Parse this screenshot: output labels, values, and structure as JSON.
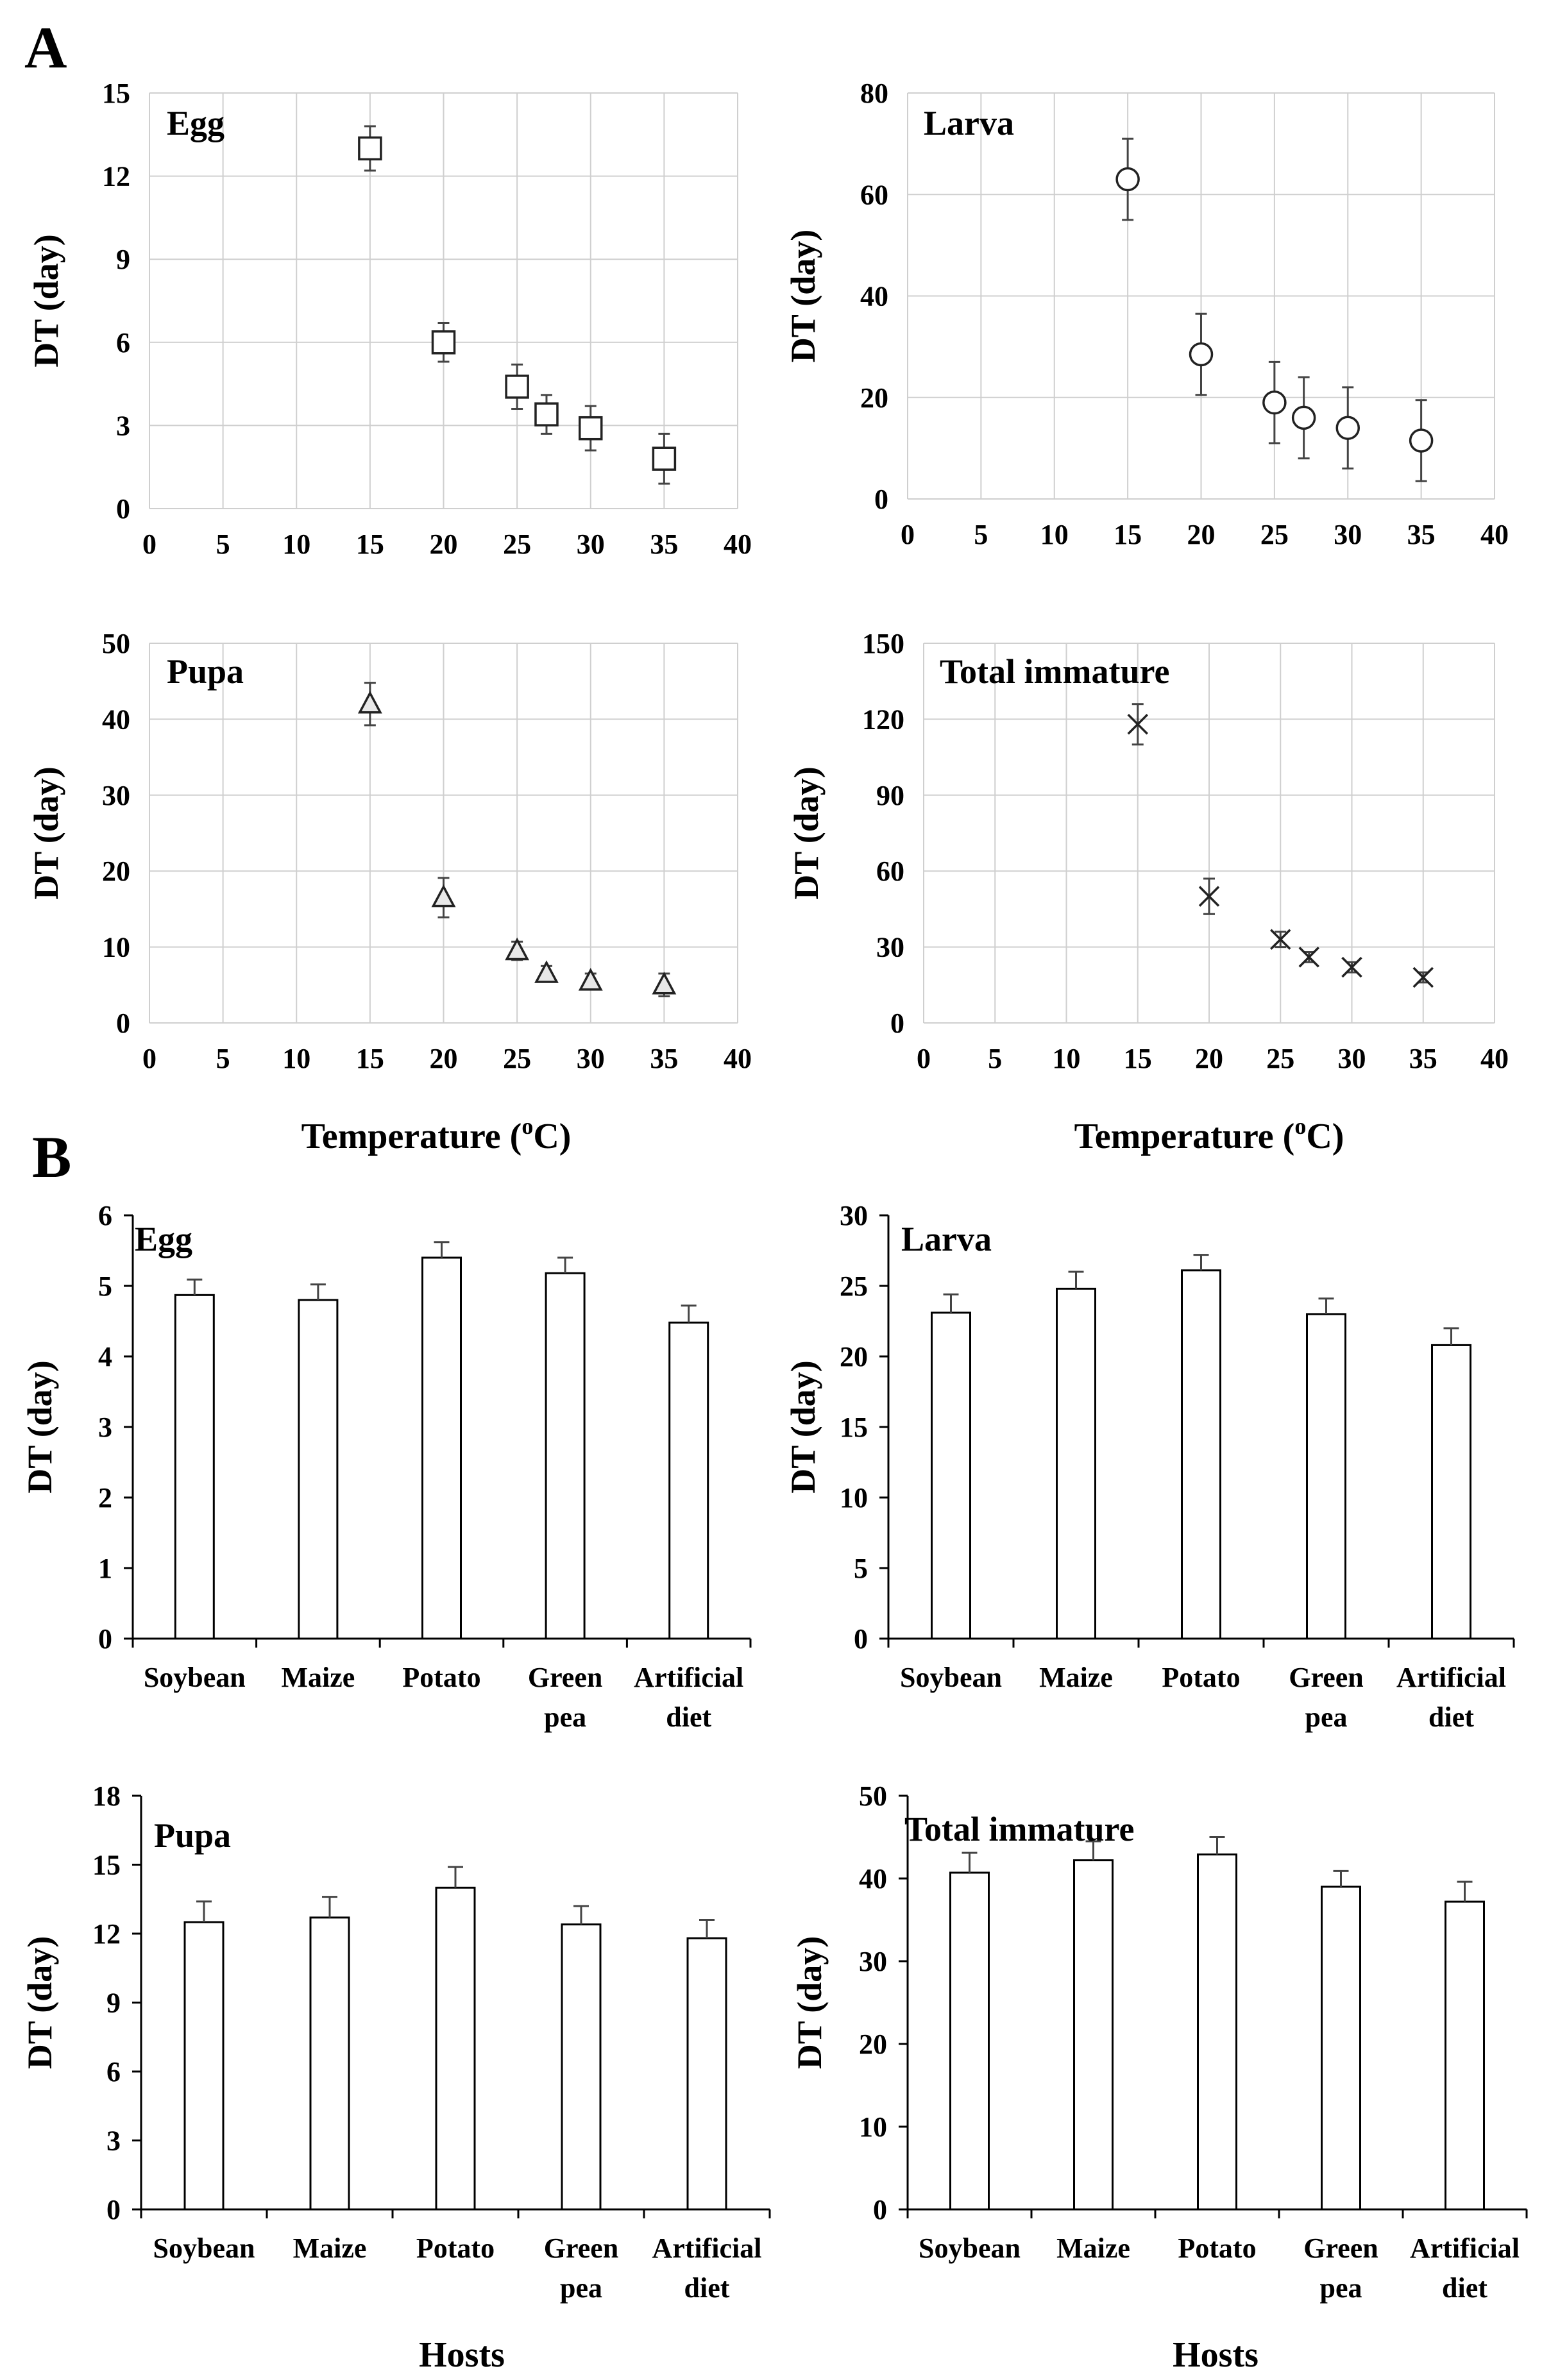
{
  "figure": {
    "section_a_label": "A",
    "section_b_label": "B"
  },
  "chart_data": [
    {
      "type": "scatter",
      "panel": "A",
      "title": "Egg",
      "xlabel": "Temperature (°C)",
      "ylabel": "DT (day)",
      "xlim": [
        0,
        40
      ],
      "xticks": [
        0,
        5,
        10,
        15,
        20,
        25,
        30,
        35,
        40
      ],
      "ylim": [
        0,
        15
      ],
      "yticks": [
        0,
        3,
        6,
        9,
        12,
        15
      ],
      "marker": "square",
      "x": [
        15,
        20,
        25,
        27,
        30,
        35
      ],
      "y": [
        13.0,
        6.0,
        4.4,
        3.4,
        2.9,
        1.8
      ],
      "error": [
        0.8,
        0.7,
        0.8,
        0.7,
        0.8,
        0.9
      ]
    },
    {
      "type": "scatter",
      "panel": "A",
      "title": "Larva",
      "xlabel": "Temperature (°C)",
      "ylabel": "DT (day)",
      "xlim": [
        0,
        40
      ],
      "xticks": [
        0,
        5,
        10,
        15,
        20,
        25,
        30,
        35,
        40
      ],
      "ylim": [
        0,
        80
      ],
      "yticks": [
        0,
        20,
        40,
        60,
        80
      ],
      "marker": "circle",
      "x": [
        15,
        20,
        25,
        27,
        30,
        35
      ],
      "y": [
        63,
        28.5,
        19,
        16,
        14,
        11.5
      ],
      "error": [
        8,
        8,
        8,
        8,
        8,
        8
      ]
    },
    {
      "type": "scatter",
      "panel": "A",
      "title": "Pupa",
      "xlabel": "Temperature (°C)",
      "ylabel": "DT (day)",
      "xlim": [
        0,
        40
      ],
      "xticks": [
        0,
        5,
        10,
        15,
        20,
        25,
        30,
        35,
        40
      ],
      "ylim": [
        0,
        50
      ],
      "yticks": [
        0,
        10,
        20,
        30,
        40,
        50
      ],
      "marker": "triangle",
      "x": [
        15,
        20,
        25,
        27,
        30,
        35
      ],
      "y": [
        42,
        16.5,
        9.5,
        6.5,
        5.5,
        5
      ],
      "error": [
        2.8,
        2.6,
        1.2,
        1.0,
        1.0,
        1.5
      ]
    },
    {
      "type": "scatter",
      "panel": "A",
      "title": "Total immature",
      "xlabel": "Temperature (°C)",
      "ylabel": "DT (day)",
      "xlim": [
        0,
        40
      ],
      "xticks": [
        0,
        5,
        10,
        15,
        20,
        25,
        30,
        35,
        40
      ],
      "ylim": [
        0,
        150
      ],
      "yticks": [
        0,
        30,
        60,
        90,
        120,
        150
      ],
      "marker": "x",
      "x": [
        15,
        20,
        25,
        27,
        30,
        35
      ],
      "y": [
        118,
        50,
        33,
        26,
        22,
        18
      ],
      "error": [
        8,
        7,
        3,
        2,
        2,
        2
      ]
    },
    {
      "type": "bar",
      "panel": "B",
      "title": "Egg",
      "ylabel": "DT (day)",
      "xlabel": "",
      "categories": [
        [
          "Soybean"
        ],
        [
          "Maize"
        ],
        [
          "Potato"
        ],
        [
          "Green",
          "pea"
        ],
        [
          "Artificial",
          "diet"
        ]
      ],
      "ylim": [
        0,
        6
      ],
      "yticks": [
        0,
        1,
        2,
        3,
        4,
        5,
        6
      ],
      "values": [
        4.87,
        4.8,
        5.4,
        5.18,
        4.48
      ],
      "error": [
        0.22,
        0.22,
        0.22,
        0.22,
        0.24
      ]
    },
    {
      "type": "bar",
      "panel": "B",
      "title": "Larva",
      "ylabel": "DT (day)",
      "xlabel": "",
      "categories": [
        [
          "Soybean"
        ],
        [
          "Maize"
        ],
        [
          "Potato"
        ],
        [
          "Green",
          "pea"
        ],
        [
          "Artificial",
          "diet"
        ]
      ],
      "ylim": [
        0,
        30
      ],
      "yticks": [
        0,
        5,
        10,
        15,
        20,
        25,
        30
      ],
      "values": [
        23.1,
        24.8,
        26.1,
        23.0,
        20.8
      ],
      "error": [
        1.3,
        1.2,
        1.1,
        1.1,
        1.2
      ]
    },
    {
      "type": "bar",
      "panel": "B",
      "title": "Pupa",
      "ylabel": "DT (day)",
      "xlabel": "Hosts",
      "categories": [
        [
          "Soybean"
        ],
        [
          "Maize"
        ],
        [
          "Potato"
        ],
        [
          "Green",
          "pea"
        ],
        [
          "Artificial",
          "diet"
        ]
      ],
      "ylim": [
        0,
        18
      ],
      "yticks": [
        0,
        3,
        6,
        9,
        12,
        15,
        18
      ],
      "values": [
        12.5,
        12.7,
        14.0,
        12.4,
        11.8
      ],
      "error": [
        0.9,
        0.9,
        0.9,
        0.8,
        0.8
      ]
    },
    {
      "type": "bar",
      "panel": "B",
      "title": "Total immature",
      "ylabel": "DT (day)",
      "xlabel": "Hosts",
      "categories": [
        [
          "Soybean"
        ],
        [
          "Maize"
        ],
        [
          "Potato"
        ],
        [
          "Green",
          "pea"
        ],
        [
          "Artificial",
          "diet"
        ]
      ],
      "ylim": [
        0,
        50
      ],
      "yticks": [
        0,
        10,
        20,
        30,
        40,
        50
      ],
      "values": [
        40.7,
        42.2,
        42.9,
        39.0,
        37.2
      ],
      "error": [
        2.4,
        2.3,
        2.1,
        1.9,
        2.4
      ]
    }
  ]
}
